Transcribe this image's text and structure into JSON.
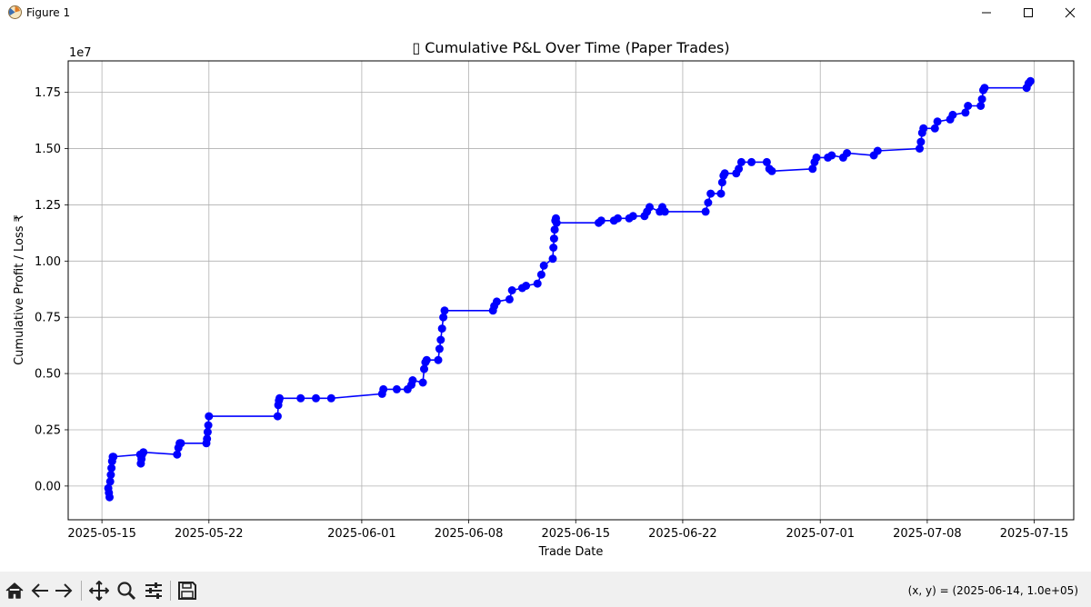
{
  "window": {
    "title": "Figure 1",
    "icons": [
      "matplotlib-icon",
      "minimize-icon",
      "maximize-icon",
      "close-icon"
    ]
  },
  "toolbar": {
    "tools": [
      "home-icon",
      "back-arrow-icon",
      "forward-arrow-icon",
      "pan-icon",
      "zoom-icon",
      "configure-subplots-icon",
      "save-icon"
    ],
    "coords": "(x, y) = (2025-06-14, 1.0e+05)"
  },
  "chart_data": {
    "type": "line",
    "title": "▯ Cumulative P&L Over Time (Paper Trades)",
    "xlabel": "Trade Date",
    "ylabel": "Cumulative Profit / Loss ₹",
    "y_offset_label": "1e7",
    "y_scale_factor": 10000000,
    "xlim": [
      "2025-05-12T19:00",
      "2025-07-17T14:00"
    ],
    "ylim": [
      -0.15,
      1.89
    ],
    "x_ticks": [
      "2025-05-15",
      "2025-05-22",
      "2025-06-01",
      "2025-06-08",
      "2025-06-15",
      "2025-06-22",
      "2025-07-01",
      "2025-07-08",
      "2025-07-15"
    ],
    "y_ticks": [
      "0.00",
      "0.25",
      "0.50",
      "0.75",
      "1.00",
      "1.25",
      "1.50",
      "1.75"
    ],
    "grid": true,
    "marker": "circle",
    "color": "#0000ff",
    "series": [
      {
        "values_note": "y in units of 1e7",
        "points": [
          [
            "2025-05-15T10:00",
            -0.01
          ],
          [
            "2025-05-15T11:00",
            -0.03
          ],
          [
            "2025-05-15T12:00",
            -0.05
          ],
          [
            "2025-05-15T13:00",
            0.02
          ],
          [
            "2025-05-15T14:00",
            0.05
          ],
          [
            "2025-05-15T15:00",
            0.08
          ],
          [
            "2025-05-15T16:00",
            0.11
          ],
          [
            "2025-05-15T17:00",
            0.13
          ],
          [
            "2025-05-15T18:00",
            0.13
          ],
          [
            "2025-05-17T12:00",
            0.14
          ],
          [
            "2025-05-17T13:00",
            0.1
          ],
          [
            "2025-05-17T14:00",
            0.12
          ],
          [
            "2025-05-17T15:00",
            0.14
          ],
          [
            "2025-05-17T17:00",
            0.15
          ],
          [
            "2025-05-19T22:00",
            0.14
          ],
          [
            "2025-05-20T00:00",
            0.17
          ],
          [
            "2025-05-20T02:00",
            0.19
          ],
          [
            "2025-05-20T04:00",
            0.19
          ],
          [
            "2025-05-21T20:00",
            0.19
          ],
          [
            "2025-05-21T21:00",
            0.21
          ],
          [
            "2025-05-21T22:00",
            0.24
          ],
          [
            "2025-05-21T23:00",
            0.27
          ],
          [
            "2025-05-22T00:00",
            0.31
          ],
          [
            "2025-05-26T12:00",
            0.31
          ],
          [
            "2025-05-26T13:00",
            0.36
          ],
          [
            "2025-05-26T14:00",
            0.38
          ],
          [
            "2025-05-26T15:00",
            0.39
          ],
          [
            "2025-05-28T00:00",
            0.39
          ],
          [
            "2025-05-29T00:00",
            0.39
          ],
          [
            "2025-05-30T00:00",
            0.39
          ],
          [
            "2025-06-02T08:00",
            0.41
          ],
          [
            "2025-06-02T10:00",
            0.43
          ],
          [
            "2025-06-03T07:00",
            0.43
          ],
          [
            "2025-06-04T00:00",
            0.43
          ],
          [
            "2025-06-04T06:00",
            0.45
          ],
          [
            "2025-06-04T08:00",
            0.47
          ],
          [
            "2025-06-05T00:00",
            0.46
          ],
          [
            "2025-06-05T02:00",
            0.52
          ],
          [
            "2025-06-05T04:00",
            0.55
          ],
          [
            "2025-06-05T06:00",
            0.56
          ],
          [
            "2025-06-06T00:00",
            0.56
          ],
          [
            "2025-06-06T02:00",
            0.61
          ],
          [
            "2025-06-06T04:00",
            0.65
          ],
          [
            "2025-06-06T06:00",
            0.7
          ],
          [
            "2025-06-06T08:00",
            0.75
          ],
          [
            "2025-06-06T10:00",
            0.78
          ],
          [
            "2025-06-09T14:00",
            0.78
          ],
          [
            "2025-06-09T16:00",
            0.8
          ],
          [
            "2025-06-09T20:00",
            0.82
          ],
          [
            "2025-06-10T16:00",
            0.83
          ],
          [
            "2025-06-10T20:00",
            0.87
          ],
          [
            "2025-06-11T12:00",
            0.88
          ],
          [
            "2025-06-11T18:00",
            0.89
          ],
          [
            "2025-06-12T12:00",
            0.9
          ],
          [
            "2025-06-12T18:00",
            0.94
          ],
          [
            "2025-06-12T22:00",
            0.98
          ],
          [
            "2025-06-13T12:00",
            1.01
          ],
          [
            "2025-06-13T13:00",
            1.06
          ],
          [
            "2025-06-13T14:00",
            1.1
          ],
          [
            "2025-06-13T15:00",
            1.14
          ],
          [
            "2025-06-13T16:00",
            1.18
          ],
          [
            "2025-06-13T17:00",
            1.19
          ],
          [
            "2025-06-13T18:00",
            1.17
          ],
          [
            "2025-06-16T12:00",
            1.17
          ],
          [
            "2025-06-16T16:00",
            1.18
          ],
          [
            "2025-06-17T12:00",
            1.18
          ],
          [
            "2025-06-17T18:00",
            1.19
          ],
          [
            "2025-06-18T12:00",
            1.19
          ],
          [
            "2025-06-18T18:00",
            1.2
          ],
          [
            "2025-06-19T12:00",
            1.2
          ],
          [
            "2025-06-19T16:00",
            1.22
          ],
          [
            "2025-06-19T20:00",
            1.24
          ],
          [
            "2025-06-20T12:00",
            1.22
          ],
          [
            "2025-06-20T16:00",
            1.24
          ],
          [
            "2025-06-20T20:00",
            1.22
          ],
          [
            "2025-06-23T12:00",
            1.22
          ],
          [
            "2025-06-23T16:00",
            1.26
          ],
          [
            "2025-06-23T20:00",
            1.3
          ],
          [
            "2025-06-24T12:00",
            1.3
          ],
          [
            "2025-06-24T14:00",
            1.35
          ],
          [
            "2025-06-24T16:00",
            1.38
          ],
          [
            "2025-06-24T18:00",
            1.39
          ],
          [
            "2025-06-25T12:00",
            1.39
          ],
          [
            "2025-06-25T16:00",
            1.41
          ],
          [
            "2025-06-25T20:00",
            1.44
          ],
          [
            "2025-06-26T12:00",
            1.44
          ],
          [
            "2025-06-27T12:00",
            1.44
          ],
          [
            "2025-06-27T16:00",
            1.41
          ],
          [
            "2025-06-27T20:00",
            1.4
          ],
          [
            "2025-06-30T12:00",
            1.41
          ],
          [
            "2025-06-30T15:00",
            1.44
          ],
          [
            "2025-06-30T18:00",
            1.46
          ],
          [
            "2025-07-01T12:00",
            1.46
          ],
          [
            "2025-07-01T18:00",
            1.47
          ],
          [
            "2025-07-02T12:00",
            1.46
          ],
          [
            "2025-07-02T18:00",
            1.48
          ],
          [
            "2025-07-04T12:00",
            1.47
          ],
          [
            "2025-07-04T18:00",
            1.49
          ],
          [
            "2025-07-07T12:00",
            1.5
          ],
          [
            "2025-07-07T14:00",
            1.53
          ],
          [
            "2025-07-07T16:00",
            1.57
          ],
          [
            "2025-07-07T18:00",
            1.59
          ],
          [
            "2025-07-08T12:00",
            1.59
          ],
          [
            "2025-07-08T16:00",
            1.62
          ],
          [
            "2025-07-09T12:00",
            1.63
          ],
          [
            "2025-07-09T16:00",
            1.65
          ],
          [
            "2025-07-10T12:00",
            1.66
          ],
          [
            "2025-07-10T16:00",
            1.69
          ],
          [
            "2025-07-11T12:00",
            1.69
          ],
          [
            "2025-07-11T14:00",
            1.72
          ],
          [
            "2025-07-11T16:00",
            1.76
          ],
          [
            "2025-07-11T18:00",
            1.77
          ],
          [
            "2025-07-14T12:00",
            1.77
          ],
          [
            "2025-07-14T15:00",
            1.79
          ],
          [
            "2025-07-14T18:00",
            1.8
          ]
        ]
      }
    ]
  }
}
